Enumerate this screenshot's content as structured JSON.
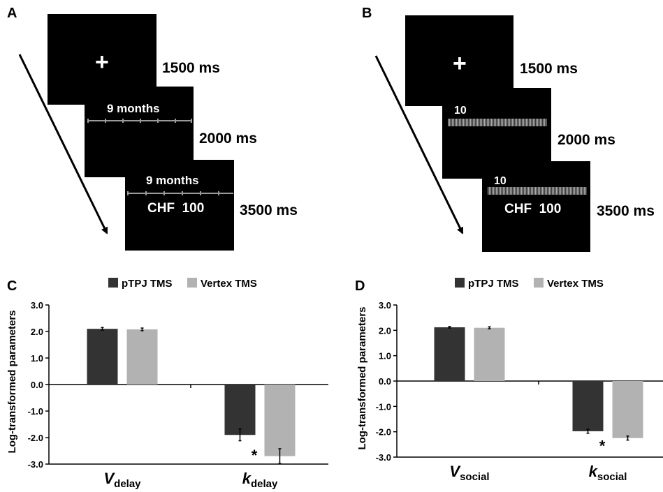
{
  "panels": {
    "a": {
      "letter": "A",
      "times": [
        "1500 ms",
        "2000 ms",
        "3500 ms"
      ],
      "fixation": "+",
      "delay_label": "9 months",
      "amount_label": "CHF  100"
    },
    "b": {
      "letter": "B",
      "times": [
        "1500 ms",
        "2000 ms",
        "3500 ms"
      ],
      "fixation": "+",
      "social_label": "10",
      "amount_label": "CHF  100"
    }
  },
  "colors": {
    "ptpj": "#333333",
    "vertex": "#b2b2b2",
    "screen": "#000000"
  },
  "chart_data": [
    {
      "panel_letter": "C",
      "type": "bar",
      "ylabel": "Log-transformed parameters",
      "ylim": [
        -3.0,
        3.0
      ],
      "yticks": [
        "3.0",
        "2.0",
        "1.0",
        "0.0",
        "-1.0",
        "-2.0",
        "-3.0"
      ],
      "ytick_values": [
        3,
        2,
        1,
        0,
        -1,
        -2,
        -3
      ],
      "categories": [
        {
          "main": "V",
          "sub": "delay"
        },
        {
          "main": "k",
          "sub": "delay"
        }
      ],
      "legend_position": "top",
      "series": [
        {
          "name": "pTPJ TMS",
          "color": "#333333",
          "values": [
            2.1,
            -1.9
          ],
          "errors": [
            0.05,
            0.22
          ]
        },
        {
          "name": "Vertex TMS",
          "color": "#b2b2b2",
          "values": [
            2.08,
            -2.7
          ],
          "errors": [
            0.05,
            0.28
          ]
        }
      ],
      "significance": "*"
    },
    {
      "panel_letter": "D",
      "type": "bar",
      "ylabel": "Log-transformed parameters",
      "ylim": [
        -3.0,
        3.0
      ],
      "yticks": [
        "3.0",
        "2.0",
        "1.0",
        "0.0",
        "-1.0",
        "-2.0",
        "-3.0"
      ],
      "ytick_values": [
        3,
        2,
        1,
        0,
        -1,
        -2,
        -3
      ],
      "categories": [
        {
          "main": "V",
          "sub": "social"
        },
        {
          "main": "k",
          "sub": "social"
        }
      ],
      "legend_position": "top",
      "series": [
        {
          "name": "pTPJ TMS",
          "color": "#333333",
          "values": [
            2.12,
            -1.98
          ],
          "errors": [
            0.03,
            0.08
          ]
        },
        {
          "name": "Vertex TMS",
          "color": "#b2b2b2",
          "values": [
            2.1,
            -2.25
          ],
          "errors": [
            0.04,
            0.08
          ]
        }
      ],
      "significance": "*"
    }
  ]
}
